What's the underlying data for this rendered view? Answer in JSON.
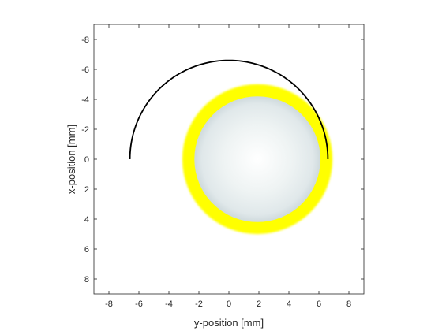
{
  "chart_data": {
    "type": "image-plot",
    "xlabel": "y-position [mm]",
    "ylabel": "x-position [mm]",
    "xlim": [
      -9,
      9
    ],
    "ylim": [
      -9,
      9
    ],
    "y_axis_reversed": true,
    "x_ticks": [
      -8,
      -6,
      -4,
      -2,
      0,
      2,
      4,
      6,
      8
    ],
    "y_ticks": [
      -8,
      -6,
      -4,
      -2,
      0,
      2,
      4,
      6,
      8
    ],
    "grid": false,
    "disk": {
      "center_y_mm": 1.9,
      "center_x_mm": 0.0,
      "inner_radius_mm": 4.2,
      "outer_radius_mm": 4.9,
      "fill_color": "#e8eeee",
      "ring_color": "#ffff00"
    },
    "trajectory": {
      "color": "#000000",
      "shape": "semicircle",
      "center_y_mm": 0.0,
      "center_x_mm": 0.0,
      "radius_mm": 6.6,
      "from": "y=-6.6 at x=0",
      "to": "y=6.4 at x=0",
      "bulges_toward": "negative x"
    }
  }
}
